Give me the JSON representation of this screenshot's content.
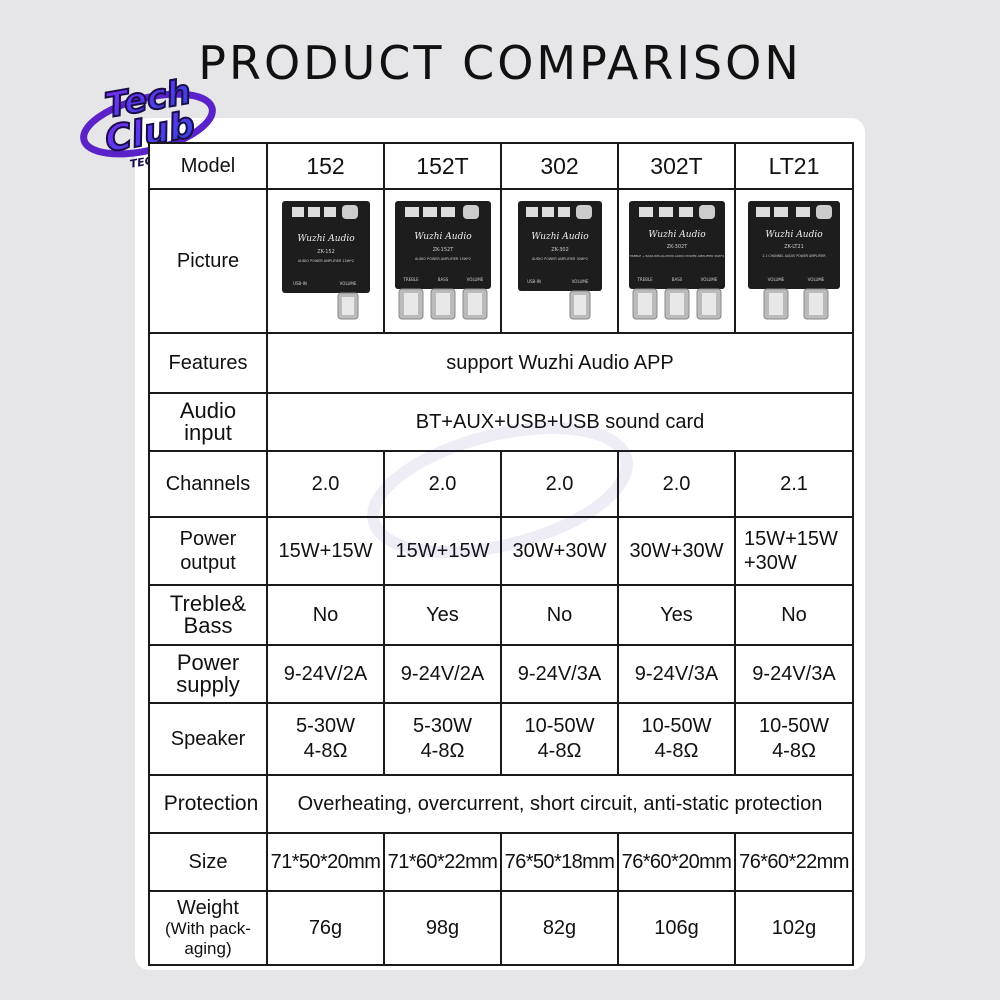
{
  "title": "PRODUCT COMPARISON",
  "logo": {
    "line1": "Tech",
    "line2": "Club",
    "sub": "TECH CLUB"
  },
  "table": {
    "model_label": "Model",
    "models": [
      "152",
      "152T",
      "302",
      "302T",
      "LT21"
    ],
    "picture_label": "Picture",
    "boards": [
      {
        "brand": "Wuzhi Audio",
        "code": "ZK-152",
        "desc": "AUDIO POWER AMPLIFIER 15W*2",
        "knob1": "USB-IN",
        "knob2": "VOLUME"
      },
      {
        "brand": "Wuzhi Audio",
        "code": "ZK-152T",
        "desc": "AUDIO POWER AMPLIFIER 15W*2",
        "knob1": "TREBLE",
        "knob2": "BASS",
        "knob3": "VOLUME"
      },
      {
        "brand": "Wuzhi Audio",
        "code": "ZK-302",
        "desc": "AUDIO POWER AMPLIFIER 30W*2",
        "knob1": "USB-IN",
        "knob2": "VOLUME"
      },
      {
        "brand": "Wuzhi Audio",
        "code": "ZK-302T",
        "desc": "TREBLE + BASS REGULATION AUDIO POWER AMPLIFIER 30W*2",
        "knob1": "TREBLE",
        "knob2": "BASS",
        "knob3": "VOLUME"
      },
      {
        "brand": "Wuzhi Audio",
        "code": "ZK-LT21",
        "desc": "2.1 CHANNEL AUDIO POWER AMPLIFIER",
        "knob1": "VOLUME",
        "knob2": "VOLUME"
      }
    ],
    "features_label": "Features",
    "features_value": "support Wuzhi Audio APP",
    "audio_input_label_1": "Audio",
    "audio_input_label_2": "input",
    "audio_input_value": "BT+AUX+USB+USB sound card",
    "channels_label": "Channels",
    "channels": [
      "2.0",
      "2.0",
      "2.0",
      "2.0",
      "2.1"
    ],
    "power_output_label_1": "Power",
    "power_output_label_2": "output",
    "power_output": [
      "15W+15W",
      "15W+15W",
      "30W+30W",
      "30W+30W"
    ],
    "power_output_lt21_1": "15W+15W",
    "power_output_lt21_2": "+30W",
    "treble_label_1": "Treble&",
    "treble_label_2": "Bass",
    "treble_bass": [
      "No",
      "Yes",
      "No",
      "Yes",
      "No"
    ],
    "power_supply_label_1": "Power",
    "power_supply_label_2": "supply",
    "power_supply": [
      "9-24V/2A",
      "9-24V/2A",
      "9-24V/3A",
      "9-24V/3A",
      "9-24V/3A"
    ],
    "speaker_label": "Speaker",
    "speaker_power": [
      "5-30W",
      "5-30W",
      "10-50W",
      "10-50W",
      "10-50W"
    ],
    "speaker_impedance": [
      "4-8Ω",
      "4-8Ω",
      "4-8Ω",
      "4-8Ω",
      "4-8Ω"
    ],
    "protection_label": "Protection",
    "protection_value": "Overheating, overcurrent, short circuit, anti-static protection",
    "size_label": "Size",
    "sizes": [
      "71*50*20mm",
      "71*60*22mm",
      "76*50*18mm",
      "76*60*20mm",
      "76*60*22mm"
    ],
    "weight_label": "Weight",
    "weight_note_1": "(With pack-",
    "weight_note_2": "aging)",
    "weights": [
      "76g",
      "98g",
      "82g",
      "106g",
      "102g"
    ]
  },
  "colors": {
    "background": "#e6e6e8",
    "card": "#ffffff",
    "border": "#1a1a1a",
    "logo_purple": "#6a2bd8",
    "logo_blue": "#2b48d8"
  }
}
